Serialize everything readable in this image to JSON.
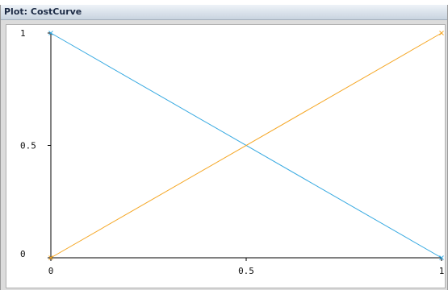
{
  "window": {
    "title": "Plot: CostCurve"
  },
  "colors": {
    "series_1": "#36a9e1",
    "series_2": "#f5a623",
    "axis": "#000000"
  },
  "chart_data": {
    "type": "line",
    "title": "",
    "xlabel": "",
    "ylabel": "",
    "xlim": [
      0,
      1
    ],
    "ylim": [
      0,
      1
    ],
    "grid": false,
    "x_ticks": [
      {
        "value": 0,
        "label": "0"
      },
      {
        "value": 0.5,
        "label": "0.5"
      },
      {
        "value": 1,
        "label": "1"
      }
    ],
    "y_ticks": [
      {
        "value": 0,
        "label": "0"
      },
      {
        "value": 0.5,
        "label": "0.5"
      },
      {
        "value": 1,
        "label": "1"
      }
    ],
    "marker": "x",
    "series": [
      {
        "color": "#36a9e1",
        "x": [
          0,
          1
        ],
        "y": [
          1,
          0
        ]
      },
      {
        "color": "#f5a623",
        "x": [
          0,
          1
        ],
        "y": [
          0,
          1
        ]
      }
    ]
  }
}
